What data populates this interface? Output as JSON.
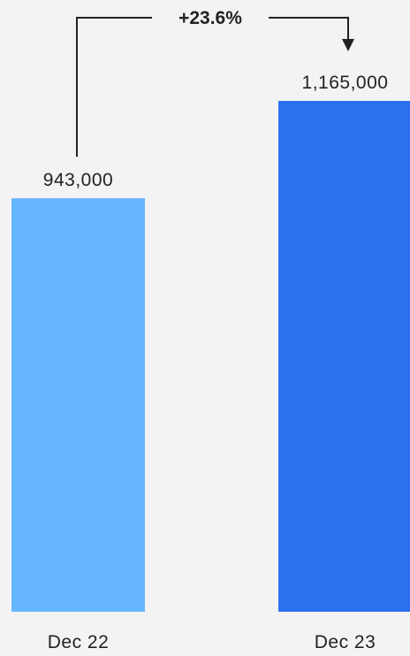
{
  "chart_data": {
    "type": "bar",
    "categories": [
      "Dec 22",
      "Dec 23"
    ],
    "values": [
      943000,
      1165000
    ],
    "value_labels": [
      "943,000",
      "1,165,000"
    ],
    "bar_colors": [
      "#66b5ff",
      "#2b70ee"
    ],
    "ylim": [
      0,
      1165000
    ],
    "grid": false,
    "legend": "none",
    "annotation": {
      "type": "change-arrow",
      "from": "Dec 22",
      "to": "Dec 23",
      "label": "+23.6%"
    }
  }
}
